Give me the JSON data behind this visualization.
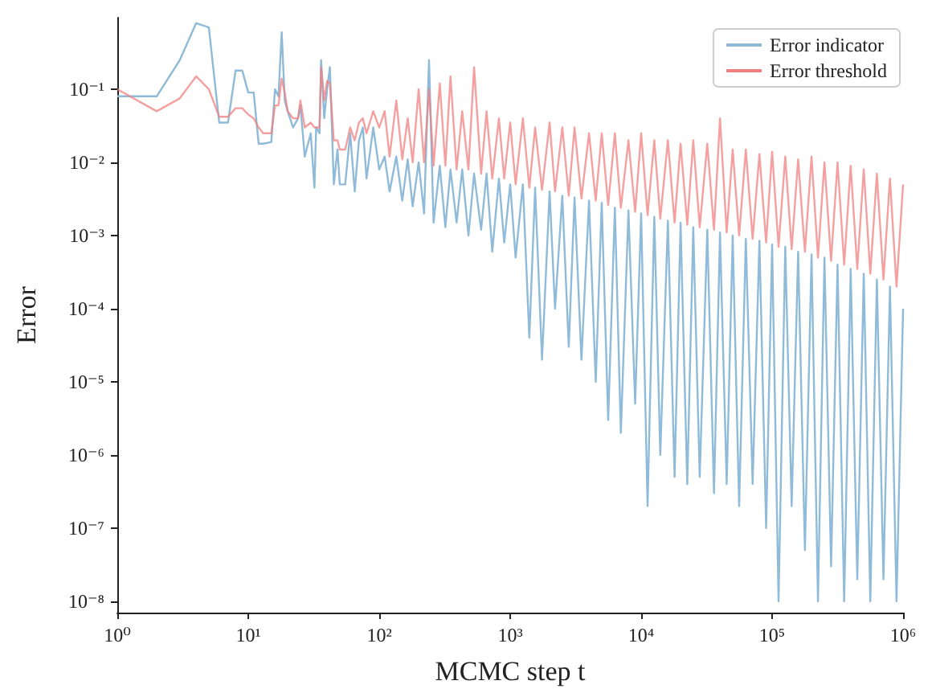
{
  "chart_data": {
    "type": "line",
    "xlabel": "MCMC step t",
    "ylabel": "Error",
    "log": "xy",
    "grid": false,
    "legend": "top right",
    "marker": "none",
    "line_style": "solid",
    "xlim": [
      1,
      1000000
    ],
    "ylim": [
      7e-09,
      0.95
    ],
    "xticks": [
      {
        "value": 1,
        "label": "10⁰"
      },
      {
        "value": 10,
        "label": "10¹"
      },
      {
        "value": 100,
        "label": "10²"
      },
      {
        "value": 1000,
        "label": "10³"
      },
      {
        "value": 10000,
        "label": "10⁴"
      },
      {
        "value": 100000,
        "label": "10⁵"
      },
      {
        "value": 1000000,
        "label": "10⁶"
      }
    ],
    "yticks": [
      {
        "value": 1e-08,
        "label": "10⁻⁸"
      },
      {
        "value": 1e-07,
        "label": "10⁻⁷"
      },
      {
        "value": 1e-06,
        "label": "10⁻⁶"
      },
      {
        "value": 1e-05,
        "label": "10⁻⁵"
      },
      {
        "value": 0.0001,
        "label": "10⁻⁴"
      },
      {
        "value": 0.001,
        "label": "10⁻³"
      },
      {
        "value": 0.01,
        "label": "10⁻²"
      },
      {
        "value": 0.1,
        "label": "10⁻¹"
      }
    ],
    "x": [
      1,
      2,
      3,
      4,
      5,
      6,
      7,
      8,
      9,
      10,
      11,
      12,
      13,
      15,
      16,
      17,
      18,
      19,
      20,
      22,
      24,
      25,
      27,
      30,
      32,
      33,
      35,
      36,
      38,
      40,
      42,
      45,
      48,
      50,
      55,
      60,
      65,
      70,
      75,
      80,
      90,
      100,
      110,
      120,
      135,
      150,
      165,
      180,
      200,
      220,
      240,
      260,
      290,
      320,
      350,
      390,
      430,
      480,
      530,
      600,
      660,
      730,
      820,
      900,
      1000,
      1100,
      1250,
      1400,
      1550,
      1750,
      2000,
      2200,
      2500,
      2800,
      3100,
      3500,
      4000,
      4500,
      5000,
      5600,
      6300,
      7000,
      8000,
      9000,
      10000,
      11200,
      12600,
      14000,
      16000,
      18000,
      20000,
      22500,
      25000,
      28000,
      32000,
      36000,
      40000,
      45000,
      50000,
      56000,
      63000,
      71000,
      80000,
      90000,
      100000,
      112000,
      126000,
      141000,
      158000,
      178000,
      200000,
      224000,
      251000,
      282000,
      316000,
      355000,
      398000,
      447000,
      501000,
      562000,
      631000,
      708000,
      794000,
      891000,
      1000000
    ],
    "series": [
      {
        "name": "Error indicator",
        "color": "#8fbbd9",
        "values": [
          0.08,
          0.08,
          0.25,
          0.8,
          0.7,
          0.035,
          0.035,
          0.18,
          0.18,
          0.09,
          0.09,
          0.018,
          0.018,
          0.019,
          0.1,
          0.08,
          0.6,
          0.07,
          0.05,
          0.03,
          0.04,
          0.06,
          0.012,
          0.025,
          0.0045,
          0.03,
          0.025,
          0.25,
          0.04,
          0.1,
          0.2,
          0.005,
          0.015,
          0.005,
          0.005,
          0.025,
          0.004,
          0.02,
          0.03,
          0.006,
          0.03,
          0.008,
          0.012,
          0.004,
          0.012,
          0.003,
          0.011,
          0.0025,
          0.01,
          0.002,
          0.25,
          0.0015,
          0.009,
          0.0013,
          0.008,
          0.0015,
          0.008,
          0.001,
          0.007,
          0.0012,
          0.007,
          0.0006,
          0.006,
          0.0008,
          0.005,
          0.0005,
          0.005,
          4e-05,
          0.0045,
          2e-05,
          0.004,
          0.0001,
          0.0035,
          3e-05,
          0.0033,
          2e-05,
          0.003,
          1e-05,
          0.0028,
          3e-06,
          0.0024,
          2e-06,
          0.0022,
          5e-06,
          0.002,
          2e-07,
          0.0018,
          1e-06,
          0.0016,
          5e-07,
          0.0015,
          4e-07,
          0.0013,
          5e-07,
          0.0012,
          3e-07,
          0.0011,
          4e-07,
          0.001,
          2e-07,
          0.0009,
          4e-07,
          0.00085,
          1e-07,
          0.00075,
          1e-08,
          0.0007,
          2e-07,
          0.0006,
          5e-08,
          0.00055,
          1e-08,
          0.0005,
          3e-08,
          0.0004,
          1e-08,
          0.00035,
          2e-08,
          0.0003,
          1e-08,
          0.00025,
          2e-08,
          0.0002,
          1e-08,
          0.0001
        ]
      },
      {
        "name": "Error threshold",
        "color": "#f08080",
        "values": [
          0.1,
          0.05,
          0.075,
          0.15,
          0.1,
          0.042,
          0.042,
          0.055,
          0.055,
          0.045,
          0.04,
          0.03,
          0.025,
          0.025,
          0.06,
          0.06,
          0.14,
          0.09,
          0.05,
          0.04,
          0.04,
          0.07,
          0.03,
          0.035,
          0.03,
          0.03,
          0.03,
          0.2,
          0.07,
          0.13,
          0.12,
          0.02,
          0.02,
          0.015,
          0.015,
          0.03,
          0.02,
          0.035,
          0.04,
          0.025,
          0.05,
          0.03,
          0.05,
          0.012,
          0.07,
          0.011,
          0.04,
          0.01,
          0.1,
          0.01,
          0.1,
          0.009,
          0.12,
          0.009,
          0.15,
          0.008,
          0.05,
          0.008,
          0.2,
          0.007,
          0.05,
          0.006,
          0.04,
          0.006,
          0.035,
          0.005,
          0.04,
          0.0045,
          0.03,
          0.0042,
          0.035,
          0.004,
          0.03,
          0.0035,
          0.03,
          0.0032,
          0.025,
          0.003,
          0.025,
          0.0026,
          0.025,
          0.0024,
          0.02,
          0.0021,
          0.025,
          0.0019,
          0.02,
          0.0017,
          0.02,
          0.0015,
          0.018,
          0.0014,
          0.02,
          0.0013,
          0.018,
          0.0012,
          0.04,
          0.0011,
          0.015,
          0.001,
          0.015,
          0.0009,
          0.013,
          0.0008,
          0.014,
          0.0007,
          0.012,
          0.00065,
          0.011,
          0.0006,
          0.012,
          0.0005,
          0.01,
          0.00045,
          0.01,
          0.0004,
          0.009,
          0.00035,
          0.008,
          0.0003,
          0.007,
          0.00025,
          0.006,
          0.0002,
          0.005
        ]
      }
    ]
  }
}
